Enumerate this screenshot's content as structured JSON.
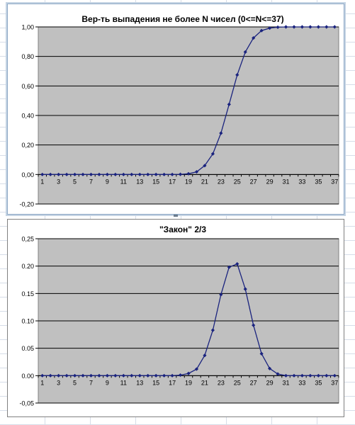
{
  "chart_data": [
    {
      "type": "line",
      "title": "Вер-ть выпадения не более N чисел (0<=N<=37)",
      "xlabel": "",
      "ylabel": "",
      "categories": [
        "1",
        "2",
        "3",
        "4",
        "5",
        "6",
        "7",
        "8",
        "9",
        "10",
        "11",
        "12",
        "13",
        "14",
        "15",
        "16",
        "17",
        "18",
        "19",
        "20",
        "21",
        "22",
        "23",
        "24",
        "25",
        "26",
        "27",
        "28",
        "29",
        "30",
        "31",
        "32",
        "33",
        "34",
        "35",
        "36",
        "37"
      ],
      "x_tick_labels": [
        "1",
        "3",
        "5",
        "7",
        "9",
        "11",
        "13",
        "15",
        "17",
        "19",
        "21",
        "23",
        "25",
        "27",
        "29",
        "31",
        "33",
        "35",
        "37"
      ],
      "y_tick_labels": [
        "1,00",
        "0,80",
        "0,60",
        "0,40",
        "0,20",
        "0,00",
        "-0,20"
      ],
      "ylim": [
        -0.2,
        1.0
      ],
      "grid": true,
      "series_color": "#1a237e",
      "plot_bg": "#c0c0c0",
      "values": [
        0,
        0,
        0,
        0,
        0,
        0,
        0,
        0,
        0,
        0,
        0,
        0,
        0,
        0,
        0,
        0,
        0,
        0.001,
        0.005,
        0.018,
        0.06,
        0.14,
        0.28,
        0.475,
        0.675,
        0.83,
        0.925,
        0.975,
        0.992,
        0.998,
        1,
        1,
        1,
        1,
        1,
        1,
        1
      ]
    },
    {
      "type": "line",
      "title": "\"Закон\" 2/3",
      "xlabel": "",
      "ylabel": "",
      "categories": [
        "1",
        "2",
        "3",
        "4",
        "5",
        "6",
        "7",
        "8",
        "9",
        "10",
        "11",
        "12",
        "13",
        "14",
        "15",
        "16",
        "17",
        "18",
        "19",
        "20",
        "21",
        "22",
        "23",
        "24",
        "25",
        "26",
        "27",
        "28",
        "29",
        "30",
        "31",
        "32",
        "33",
        "34",
        "35",
        "36",
        "37"
      ],
      "x_tick_labels": [
        "1",
        "3",
        "5",
        "7",
        "9",
        "11",
        "13",
        "15",
        "17",
        "19",
        "21",
        "23",
        "25",
        "27",
        "29",
        "31",
        "33",
        "35",
        "37"
      ],
      "y_tick_labels": [
        "0,25",
        "0.20",
        "0.15",
        "0.10",
        "0.05",
        "0.00",
        "-0,05"
      ],
      "ylim": [
        -0.05,
        0.25
      ],
      "grid": true,
      "series_color": "#1a237e",
      "plot_bg": "#c0c0c0",
      "values": [
        0,
        0,
        0,
        0,
        0,
        0,
        0,
        0,
        0,
        0,
        0,
        0,
        0,
        0,
        0,
        0,
        0,
        0.001,
        0.004,
        0.012,
        0.037,
        0.083,
        0.148,
        0.198,
        0.204,
        0.158,
        0.092,
        0.04,
        0.013,
        0.003,
        0,
        0,
        0,
        0,
        0,
        0,
        0
      ]
    }
  ]
}
